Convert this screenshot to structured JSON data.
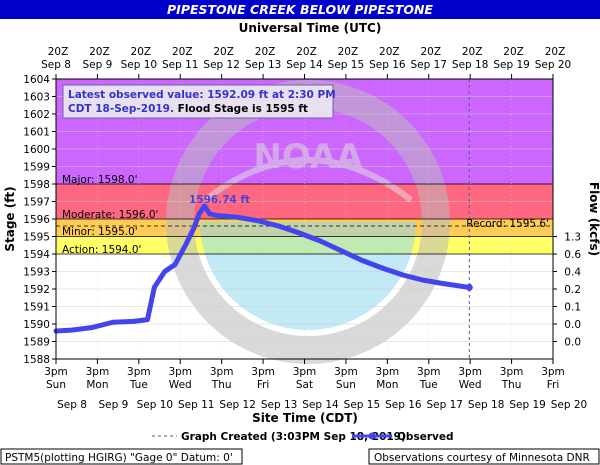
{
  "title": "PIPESTONE CREEK BELOW PIPESTONE",
  "colors": {
    "title_bg": "#0000cc",
    "major": "#cc66ff",
    "major_band": "#ff6680",
    "moderate_band": "#ff9966",
    "minor_band": "#ffcc55",
    "action_band": "#ffff66",
    "series": "#4444ee",
    "annotation": "#3333cc"
  },
  "top_axis": {
    "title": "Universal Time (UTC)",
    "labels": [
      "20Z Sep 8",
      "20Z Sep 9",
      "20Z Sep 10",
      "20Z Sep 11",
      "20Z Sep 12",
      "20Z Sep 13",
      "20Z Sep 14",
      "20Z Sep 15",
      "20Z Sep 16",
      "20Z Sep 17",
      "20Z Sep 18",
      "20Z Sep 19",
      "20Z Sep 20"
    ]
  },
  "bottom_axis": {
    "title": "Site Time (CDT)",
    "labels": [
      "3pm Sun Sep 8",
      "3pm Mon Sep 9",
      "3pm Tue Sep 10",
      "3pm Wed Sep 11",
      "3pm Thu Sep 12",
      "3pm Fri Sep 13",
      "3pm Sat Sep 14",
      "3pm Sun Sep 15",
      "3pm Mon Sep 16",
      "3pm Tue Sep 17",
      "3pm Wed Sep 18",
      "3pm Thu Sep 19",
      "3pm Fri Sep 20"
    ]
  },
  "left_axis": {
    "title": "Stage (ft)"
  },
  "right_axis": {
    "title": "Flow (kcfs)",
    "labels": [
      {
        "stage": 1595,
        "text": "1.3"
      },
      {
        "stage": 1594,
        "text": "0.6"
      },
      {
        "stage": 1593,
        "text": "0.4"
      },
      {
        "stage": 1592,
        "text": "0.2"
      },
      {
        "stage": 1591,
        "text": "0.1"
      },
      {
        "stage": 1590,
        "text": "0.0"
      },
      {
        "stage": 1589,
        "text": "0.0"
      }
    ]
  },
  "thresholds": {
    "major": "Major: 1598.0'",
    "moderate": "Moderate: 1596.0'",
    "minor": "Minor: 1595.0'",
    "action": "Action: 1594.0'",
    "record": "Record: 1595.6'"
  },
  "latest_box": {
    "line1": "Latest observed value: 1592.09 ft at 2:30 PM",
    "line2a": "CDT 18-Sep-2019.",
    "line2b": " Flood Stage is 1595 ft"
  },
  "peak_label": "1596.74 ft",
  "legend": {
    "created": "Graph Created (3:03PM Sep 18, 2019)",
    "observed": "Observed"
  },
  "footer": {
    "left": "PSTM5(plotting HGIRG) \"Gage 0\" Datum: 0'",
    "right": "Observations courtesy of Minnesota DNR"
  },
  "chart_data": {
    "type": "line",
    "title": "PIPESTONE CREEK BELOW PIPESTONE",
    "xlabel": "Site Time (CDT)",
    "ylabel": "Stage (ft)",
    "ylim": [
      1588,
      1604
    ],
    "xlim": [
      "2019-09-08T15:00",
      "2019-09-20T15:00"
    ],
    "thresholds": {
      "action": 1594.0,
      "minor": 1595.0,
      "moderate": 1596.0,
      "major": 1598.0,
      "record": 1595.6
    },
    "latest": {
      "value": 1592.09,
      "time": "2019-09-18T14:30"
    },
    "peak": {
      "value": 1596.74
    },
    "series": [
      {
        "name": "Observed",
        "x": [
          "2019-09-08T15:00",
          "2019-09-09T00:00",
          "2019-09-09T12:00",
          "2019-09-10T00:00",
          "2019-09-10T12:00",
          "2019-09-10T20:00",
          "2019-09-11T00:00",
          "2019-09-11T06:00",
          "2019-09-11T12:00",
          "2019-09-11T18:00",
          "2019-09-11T23:00",
          "2019-09-12T02:00",
          "2019-09-12T05:00",
          "2019-09-12T08:00",
          "2019-09-12T12:00",
          "2019-09-12T18:00",
          "2019-09-13T00:00",
          "2019-09-13T12:00",
          "2019-09-14T00:00",
          "2019-09-14T12:00",
          "2019-09-15T00:00",
          "2019-09-15T12:00",
          "2019-09-16T00:00",
          "2019-09-16T12:00",
          "2019-09-17T00:00",
          "2019-09-17T12:00",
          "2019-09-18T00:00",
          "2019-09-18T14:30"
        ],
        "y": [
          1589.6,
          1589.65,
          1589.8,
          1590.1,
          1590.15,
          1590.25,
          1592.1,
          1593.0,
          1593.4,
          1594.5,
          1595.5,
          1596.3,
          1596.74,
          1596.3,
          1596.2,
          1596.15,
          1596.1,
          1595.9,
          1595.6,
          1595.2,
          1594.75,
          1594.2,
          1593.65,
          1593.2,
          1592.8,
          1592.5,
          1592.3,
          1592.09
        ]
      }
    ]
  }
}
